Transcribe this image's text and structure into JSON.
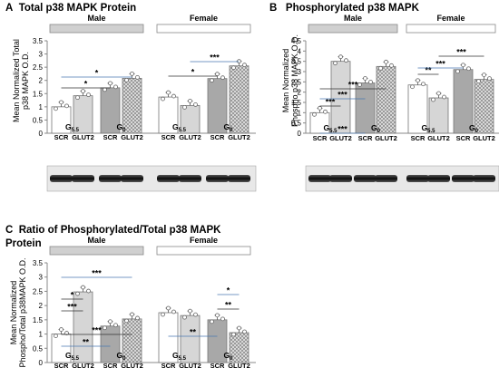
{
  "panels": [
    {
      "letter": "A",
      "title": "Total p38 MAPK Protein",
      "ylabel_lines": [
        "Mean Normalized Total",
        "p38 MAPK O.D."
      ],
      "chart_data": {
        "type": "bar",
        "ylim": [
          0,
          3.5
        ],
        "yticks": [
          "0",
          "0.5",
          "1",
          "1.5",
          "2",
          "2.5",
          "3",
          "3.5"
        ],
        "groups": [
          "Male",
          "Female"
        ],
        "categories": [
          "G5.5 SCR",
          "G5.5 GLUT2",
          "G0 SCR",
          "G0 GLUT2",
          "G5.5 SCR",
          "G5.5 GLUT2",
          "G0 SCR",
          "G0 GLUT2"
        ],
        "values": [
          1.0,
          1.42,
          1.72,
          2.08,
          1.37,
          1.05,
          2.07,
          2.55
        ],
        "sublabels": [
          "SCR",
          "GLUT2",
          "SCR",
          "GLUT2",
          "SCR",
          "GLUT2",
          "SCR",
          "GLUT2"
        ],
        "condition_labels": [
          "G5.5",
          "G0",
          "G5.5",
          "G0"
        ],
        "significance": [
          "*",
          "*",
          "*",
          "***"
        ]
      }
    },
    {
      "letter": "B",
      "title": "Phosphorylated  p38 MAPK",
      "ylabel_lines": [
        "Mean Normalized",
        "Phospho p38 MAPK O.D."
      ],
      "chart_data": {
        "type": "bar",
        "ylim": [
          0,
          4.5
        ],
        "yticks": [
          "0",
          "0.5",
          "1",
          "1.5",
          "2",
          "2.5",
          "3",
          "3.5",
          "4",
          "4.5"
        ],
        "groups": [
          "Male",
          "Female"
        ],
        "categories": [
          "G5.5 SCR",
          "G5.5 GLUT2",
          "G0 SCR",
          "G0 GLUT2",
          "G5.5 SCR",
          "G5.5 GLUT2",
          "G0 SCR",
          "G0 GLUT2"
        ],
        "values": [
          1.0,
          3.5,
          2.45,
          3.25,
          2.35,
          1.72,
          3.1,
          2.62
        ],
        "sublabels": [
          "SCR",
          "GLUT2",
          "SCR",
          "GLUT2",
          "SCR",
          "GLUT2",
          "SCR",
          "GLUT2"
        ],
        "condition_labels": [
          "G5.5",
          "G0",
          "G5.5",
          "G0"
        ],
        "significance": [
          "***",
          "***",
          "***",
          "***",
          "**",
          "***",
          "***"
        ]
      }
    },
    {
      "letter": "C",
      "title": "Ratio of Phosphorylated/Total  p38 MAPK",
      "title2": "Protein",
      "ylabel_lines": [
        "Mean Normalized",
        "Phospho/Total p38MAPK O.D."
      ],
      "chart_data": {
        "type": "bar",
        "ylim": [
          0,
          3.5
        ],
        "yticks": [
          "0",
          "0.5",
          "1",
          "1.5",
          "2",
          "2.5",
          "3",
          "3.5"
        ],
        "groups": [
          "Male",
          "Female"
        ],
        "categories": [
          "G5.5 SCR",
          "G5.5 GLUT2",
          "G0 SCR",
          "G0 GLUT2",
          "G5.5 SCR",
          "G5.5 GLUT2",
          "G0 SCR",
          "G0 GLUT2"
        ],
        "values": [
          1.0,
          2.48,
          1.28,
          1.53,
          1.75,
          1.65,
          1.5,
          1.05
        ],
        "sublabels": [
          "SCR",
          "GLUT2",
          "SCR",
          "GLUT2",
          "SCR",
          "GLUT2",
          "SCR",
          "GLUT2"
        ],
        "condition_labels": [
          "G5.5",
          "G0",
          "G5.5",
          "G0"
        ],
        "significance": [
          "***",
          "***",
          "*",
          "**",
          "***",
          "**",
          "**",
          "*"
        ]
      }
    }
  ]
}
